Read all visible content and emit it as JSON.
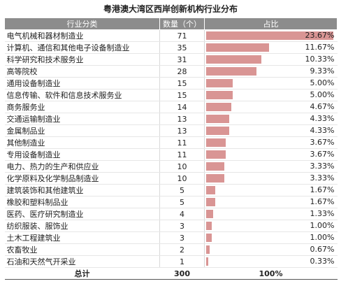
{
  "chart_data": {
    "type": "table",
    "title": "粤港澳大湾区西岸创新机构行业分布",
    "columns": [
      "行业分类",
      "数量（个）",
      "占比"
    ],
    "max_value": 71,
    "rows": [
      {
        "category": "电气机械和器材制造业",
        "count": "71",
        "value": 71,
        "pct": "23.67%"
      },
      {
        "category": "计算机、通信和其他电子设备制造业",
        "count": "35",
        "value": 35,
        "pct": "11.67%"
      },
      {
        "category": "科学研究和技术服务业",
        "count": "31",
        "value": 31,
        "pct": "10.33%"
      },
      {
        "category": "高等院校",
        "count": "28",
        "value": 28,
        "pct": "9.33%"
      },
      {
        "category": "通用设备制造业",
        "count": "15",
        "value": 15,
        "pct": "5.00%"
      },
      {
        "category": "信息传输、软件和信息技术服务业",
        "count": "15",
        "value": 15,
        "pct": "5.00%"
      },
      {
        "category": "商务服务业",
        "count": "14",
        "value": 14,
        "pct": "4.67%"
      },
      {
        "category": "交通运输制造业",
        "count": "13",
        "value": 13,
        "pct": "4.33%"
      },
      {
        "category": "金属制品业",
        "count": "13",
        "value": 13,
        "pct": "4.33%"
      },
      {
        "category": "其他制造业",
        "count": "11",
        "value": 11,
        "pct": "3.67%"
      },
      {
        "category": "专用设备制造业",
        "count": "11",
        "value": 11,
        "pct": "3.67%"
      },
      {
        "category": "电力、热力的生产和供应业",
        "count": "10",
        "value": 10,
        "pct": "3.33%"
      },
      {
        "category": "化学原料及化学制品制造业",
        "count": "10",
        "value": 10,
        "pct": "3.33%"
      },
      {
        "category": "建筑装饰和其他建筑业",
        "count": "5",
        "value": 5,
        "pct": "1.67%"
      },
      {
        "category": "橡胶和塑料制品业",
        "count": "5",
        "value": 5,
        "pct": "1.67%"
      },
      {
        "category": "医药、医疗研究制造业",
        "count": "4",
        "value": 4,
        "pct": "1.33%"
      },
      {
        "category": "纺织服装、服饰业",
        "count": "3",
        "value": 3,
        "pct": "1.00%"
      },
      {
        "category": "土木工程建筑业",
        "count": "3",
        "value": 3,
        "pct": "1.00%"
      },
      {
        "category": "农畜牧业",
        "count": "2",
        "value": 2,
        "pct": "0.67%"
      },
      {
        "category": "石油和天然气开采业",
        "count": "1",
        "value": 1,
        "pct": "0.33%"
      }
    ],
    "total": {
      "label": "总计",
      "count": "300",
      "pct": "100%"
    },
    "bar_color": "#d99594",
    "header_color": "#8c8c8c"
  }
}
